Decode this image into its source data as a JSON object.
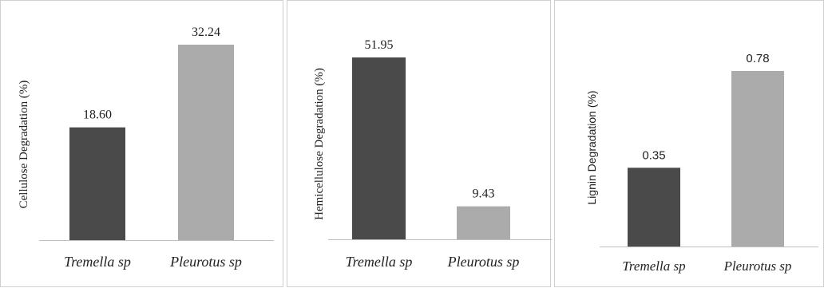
{
  "chart_data": [
    {
      "type": "bar",
      "ylabel": "Cellulose Degradation (%)",
      "categories": [
        "Tremella sp",
        "Pleurotus sp"
      ],
      "values": [
        18.6,
        32.24
      ],
      "value_labels": [
        "18.60",
        "32.24"
      ],
      "colors": [
        "#4a4a4a",
        "#ababab"
      ],
      "grid": false
    },
    {
      "type": "bar",
      "ylabel": "Hemicellulose Degradation (%)",
      "categories": [
        "Tremella sp",
        "Pleurotus sp"
      ],
      "values": [
        51.95,
        9.43
      ],
      "value_labels": [
        "51.95",
        "9.43"
      ],
      "colors": [
        "#4a4a4a",
        "#ababab"
      ],
      "grid": false
    },
    {
      "type": "bar",
      "ylabel": "Lignin Degradation (%)",
      "categories": [
        "Tremella sp",
        "Pleurotus sp"
      ],
      "values": [
        0.35,
        0.78
      ],
      "value_labels": [
        "0.35",
        "0.78"
      ],
      "colors": [
        "#4a4a4a",
        "#ababab"
      ],
      "grid": false
    }
  ]
}
